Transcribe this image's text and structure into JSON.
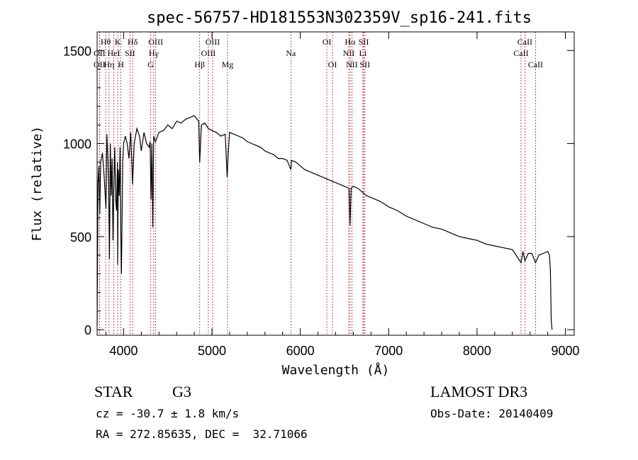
{
  "chart_data": {
    "type": "line",
    "title": "spec-56757-HD181553N302359V_sp16-241.fits",
    "xlabel": "Wavelength (Å)",
    "ylabel": "Flux (relative)",
    "xlim": [
      3700,
      9100
    ],
    "ylim": [
      -30,
      1600
    ],
    "xticks": [
      4000,
      5000,
      6000,
      7000,
      8000,
      9000
    ],
    "yticks": [
      0,
      500,
      1000,
      1500
    ],
    "series": [
      {
        "name": "flux",
        "x": [
          3700,
          3710,
          3720,
          3730,
          3740,
          3760,
          3780,
          3800,
          3810,
          3820,
          3830,
          3840,
          3850,
          3860,
          3870,
          3880,
          3890,
          3900,
          3910,
          3920,
          3930,
          3933,
          3940,
          3950,
          3960,
          3968,
          3975,
          3990,
          4000,
          4020,
          4040,
          4060,
          4080,
          4101,
          4120,
          4150,
          4180,
          4200,
          4230,
          4260,
          4290,
          4300,
          4310,
          4320,
          4330,
          4340,
          4360,
          4400,
          4450,
          4500,
          4550,
          4600,
          4650,
          4700,
          4750,
          4800,
          4850,
          4861,
          4880,
          4920,
          4960,
          5000,
          5050,
          5100,
          5150,
          5172,
          5183,
          5200,
          5250,
          5300,
          5350,
          5400,
          5450,
          5500,
          5550,
          5600,
          5650,
          5700,
          5750,
          5800,
          5850,
          5893,
          5900,
          5950,
          6000,
          6050,
          6100,
          6150,
          6200,
          6250,
          6300,
          6350,
          6400,
          6450,
          6500,
          6550,
          6563,
          6575,
          6600,
          6650,
          6700,
          6750,
          6800,
          6900,
          7000,
          7100,
          7200,
          7300,
          7400,
          7500,
          7600,
          7700,
          7800,
          7900,
          8000,
          8100,
          8200,
          8300,
          8400,
          8498,
          8520,
          8542,
          8580,
          8620,
          8662,
          8700,
          8750,
          8800,
          8820,
          8830,
          8840,
          8850
        ],
        "y": [
          20,
          780,
          880,
          620,
          900,
          950,
          820,
          650,
          1050,
          940,
          780,
          380,
          1000,
          720,
          920,
          480,
          800,
          980,
          700,
          640,
          900,
          350,
          860,
          720,
          980,
          520,
          300,
          900,
          1000,
          1040,
          1000,
          920,
          1060,
          780,
          1000,
          1080,
          1040,
          960,
          1060,
          1000,
          980,
          1010,
          700,
          1000,
          550,
          1040,
          1010,
          1060,
          1070,
          1100,
          1080,
          1120,
          1110,
          1130,
          1140,
          1150,
          1120,
          900,
          1100,
          1110,
          1080,
          1070,
          1060,
          1040,
          1050,
          820,
          940,
          1060,
          1050,
          1040,
          1030,
          1010,
          1000,
          990,
          980,
          960,
          950,
          940,
          920,
          920,
          910,
          860,
          910,
          900,
          880,
          860,
          850,
          840,
          830,
          820,
          810,
          800,
          790,
          780,
          770,
          760,
          560,
          760,
          770,
          760,
          740,
          720,
          710,
          690,
          660,
          640,
          610,
          590,
          570,
          550,
          540,
          520,
          500,
          490,
          480,
          460,
          450,
          440,
          430,
          360,
          420,
          370,
          410,
          410,
          360,
          400,
          410,
          420,
          400,
          320,
          50,
          0
        ]
      }
    ],
    "lines": [
      {
        "name": "OII",
        "wl": 3727,
        "row": 2
      },
      {
        "name": "Hθ",
        "wl": 3797,
        "row": 1
      },
      {
        "name": "OII",
        "wl": 3727,
        "row": 3
      },
      {
        "name": "Hη",
        "wl": 3835,
        "row": 3
      },
      {
        "name": "HeI",
        "wl": 3889,
        "row": 2
      },
      {
        "name": "K",
        "wl": 3934,
        "row": 1
      },
      {
        "name": "H",
        "wl": 3969,
        "row": 3
      },
      {
        "name": "SII",
        "wl": 4072,
        "row": 2
      },
      {
        "name": "Hδ",
        "wl": 4102,
        "row": 1
      },
      {
        "name": "G",
        "wl": 4305,
        "row": 3
      },
      {
        "name": "Hγ",
        "wl": 4341,
        "row": 2
      },
      {
        "name": "OIII",
        "wl": 4363,
        "row": 1
      },
      {
        "name": "Hβ",
        "wl": 4861,
        "row": 3
      },
      {
        "name": "OIII",
        "wl": 4959,
        "row": 2
      },
      {
        "name": "OIII",
        "wl": 5007,
        "row": 1
      },
      {
        "name": "Mg",
        "wl": 5176,
        "row": 3
      },
      {
        "name": "Na",
        "wl": 5893,
        "row": 2
      },
      {
        "name": "OI",
        "wl": 6300,
        "row": 1
      },
      {
        "name": "OI",
        "wl": 6364,
        "row": 3
      },
      {
        "name": "NII",
        "wl": 6548,
        "row": 2
      },
      {
        "name": "Hα",
        "wl": 6563,
        "row": 1
      },
      {
        "name": "NII",
        "wl": 6584,
        "row": 3
      },
      {
        "name": "Li",
        "wl": 6708,
        "row": 2
      },
      {
        "name": "SII",
        "wl": 6717,
        "row": 1
      },
      {
        "name": "SII",
        "wl": 6731,
        "row": 3
      },
      {
        "name": "CaII",
        "wl": 8498,
        "row": 2
      },
      {
        "name": "CaII",
        "wl": 8542,
        "row": 1
      },
      {
        "name": "CaII",
        "wl": 8662,
        "row": 3
      }
    ]
  },
  "footer": {
    "class_label": "STAR",
    "subclass": "G3",
    "survey": "LAMOST DR3",
    "cz": "cz = -30.7 ± 1.8 km/s",
    "obs_date": "Obs-Date: 20140409",
    "coords": "RA = 272.85635, DEC =  32.71066"
  },
  "colors": {
    "line_marker": "#b22222",
    "spectrum": "#000000",
    "axis": "#000000"
  }
}
